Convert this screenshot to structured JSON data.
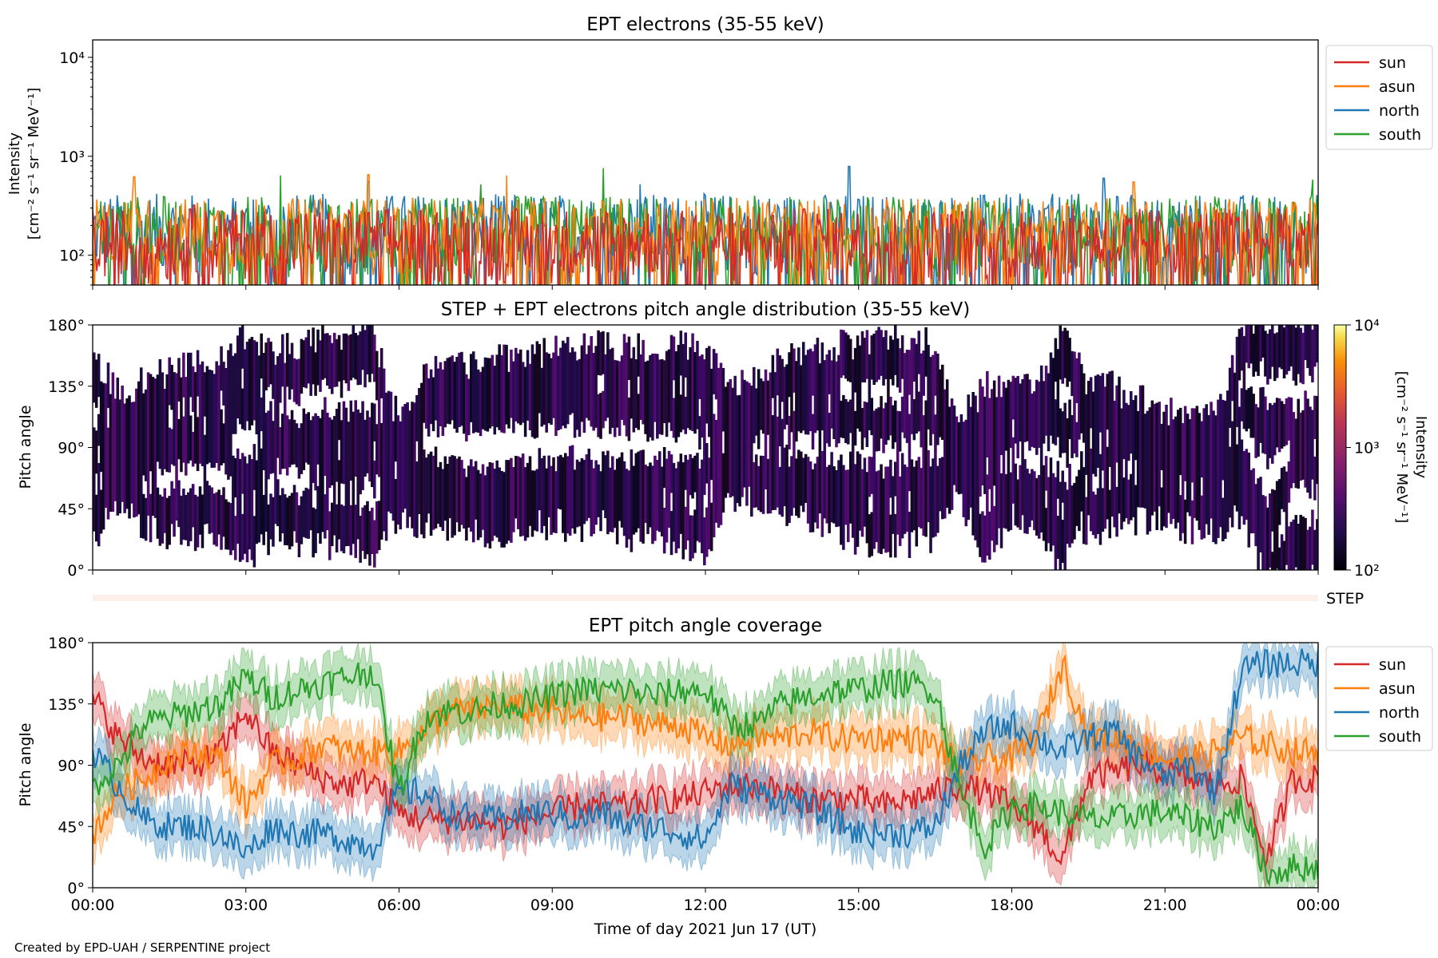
{
  "footer": {
    "credit": "Created by EPD-UAH / SERPENTINE project"
  },
  "colors": {
    "sun": "#d62728",
    "asun": "#ff7f0e",
    "north": "#1f77b4",
    "south": "#2ca02c",
    "step_bar": "#fdf0ea"
  },
  "chart_data": [
    {
      "type": "line",
      "title": "EPT electrons (35-55 keV)",
      "ylabel": [
        "Intensity",
        "[cm⁻² s⁻¹ sr⁻¹ MeV⁻¹]"
      ],
      "yscale": "log",
      "ylim": [
        50,
        15000
      ],
      "yticks": [
        {
          "v": 100,
          "label": "10²"
        },
        {
          "v": 1000,
          "label": "10³"
        },
        {
          "v": 10000,
          "label": "10⁴"
        }
      ],
      "x_hours": [
        0,
        24
      ],
      "legend": {
        "position": "outside-right",
        "entries": [
          "sun",
          "asun",
          "north",
          "south"
        ]
      },
      "series": [
        {
          "name": "north",
          "color": "#1f77b4",
          "typical": [
            60,
            420
          ],
          "peaks": [
            [
              5.4,
              560
            ],
            [
              14.8,
              790
            ],
            [
              19.8,
              600
            ],
            [
              10.7,
              520
            ]
          ]
        },
        {
          "name": "south",
          "color": "#2ca02c",
          "typical": [
            60,
            400
          ],
          "peaks": [
            [
              10.0,
              760
            ],
            [
              3.7,
              640
            ],
            [
              23.9,
              580
            ],
            [
              7.6,
              520
            ]
          ]
        },
        {
          "name": "asun",
          "color": "#ff7f0e",
          "typical": [
            60,
            380
          ],
          "peaks": [
            [
              0.8,
              620
            ],
            [
              5.4,
              650
            ],
            [
              8.1,
              640
            ],
            [
              20.4,
              550
            ]
          ]
        },
        {
          "name": "sun",
          "color": "#d62728",
          "typical": [
            50,
            300
          ],
          "peaks": [
            [
              2.0,
              320
            ],
            [
              12.5,
              310
            ]
          ]
        }
      ]
    },
    {
      "type": "heatmap",
      "title": "STEP + EPT electrons pitch angle distribution (35-55 keV)",
      "ylabel": "Pitch angle",
      "ylim": [
        0,
        180
      ],
      "yticks": [
        "0°",
        "45°",
        "90°",
        "135°",
        "180°"
      ],
      "colorbar": {
        "label": [
          "Intensity",
          "[cm⁻² s⁻¹ sr⁻¹ MeV⁻¹]"
        ],
        "scale": "log",
        "range": [
          100,
          10000
        ],
        "ticks": [
          "10²",
          "10³",
          "10⁴"
        ],
        "colormap": "inferno"
      },
      "x_hours": [
        0,
        24
      ]
    },
    {
      "type": "bar",
      "label": "STEP",
      "x_hours": [
        0,
        24
      ]
    },
    {
      "type": "area",
      "title": "EPT pitch angle coverage",
      "ylabel": "Pitch angle",
      "xlabel": "Time of day 2021 Jun 17 (UT)",
      "ylim": [
        0,
        180
      ],
      "yticks": [
        "0°",
        "45°",
        "90°",
        "135°",
        "180°"
      ],
      "xticks": [
        "00:00",
        "03:00",
        "06:00",
        "09:00",
        "12:00",
        "15:00",
        "18:00",
        "21:00",
        "00:00"
      ],
      "x": [
        0,
        0.5,
        1,
        1.5,
        2,
        2.5,
        3,
        3.5,
        4,
        4.5,
        5,
        5.5,
        6,
        6.5,
        7,
        7.5,
        8,
        8.5,
        9,
        9.5,
        10,
        10.5,
        11,
        11.5,
        12,
        12.5,
        13,
        13.5,
        14,
        14.5,
        15,
        15.5,
        16,
        16.5,
        17,
        17.5,
        18,
        18.5,
        19,
        19.5,
        20,
        20.5,
        21,
        21.5,
        22,
        22.5,
        23,
        23.5,
        24
      ],
      "legend": {
        "position": "outside-right",
        "entries": [
          "sun",
          "asun",
          "north",
          "south"
        ]
      },
      "series": [
        {
          "name": "sun",
          "color": "#d62728",
          "values": [
            140,
            110,
            95,
            90,
            90,
            100,
            130,
            100,
            90,
            80,
            75,
            80,
            55,
            50,
            50,
            50,
            45,
            50,
            55,
            60,
            60,
            60,
            65,
            65,
            70,
            75,
            75,
            70,
            65,
            65,
            65,
            60,
            65,
            70,
            75,
            70,
            60,
            45,
            20,
            80,
            85,
            90,
            85,
            80,
            75,
            80,
            20,
            80,
            80
          ]
        },
        {
          "name": "asun",
          "color": "#ff7f0e",
          "values": [
            40,
            70,
            80,
            95,
            100,
            95,
            60,
            90,
            95,
            105,
            100,
            100,
            100,
            115,
            130,
            130,
            135,
            130,
            130,
            125,
            125,
            125,
            120,
            120,
            110,
            105,
            110,
            110,
            115,
            110,
            110,
            110,
            110,
            105,
            90,
            95,
            95,
            110,
            165,
            110,
            110,
            105,
            95,
            95,
            100,
            110,
            105,
            100,
            100
          ]
        },
        {
          "name": "north",
          "color": "#1f77b4",
          "values": [
            100,
            75,
            50,
            45,
            45,
            40,
            25,
            45,
            40,
            40,
            35,
            30,
            70,
            70,
            55,
            50,
            50,
            55,
            55,
            50,
            55,
            45,
            45,
            40,
            35,
            75,
            70,
            65,
            60,
            50,
            40,
            40,
            40,
            45,
            90,
            115,
            120,
            110,
            100,
            110,
            115,
            95,
            80,
            90,
            70,
            160,
            165,
            165,
            165
          ]
        },
        {
          "name": "south",
          "color": "#2ca02c",
          "values": [
            75,
            90,
            120,
            125,
            130,
            135,
            155,
            140,
            145,
            150,
            155,
            160,
            70,
            125,
            130,
            130,
            135,
            135,
            140,
            145,
            145,
            145,
            140,
            145,
            145,
            120,
            120,
            135,
            140,
            145,
            145,
            150,
            150,
            145,
            70,
            30,
            60,
            60,
            55,
            50,
            50,
            55,
            55,
            50,
            45,
            60,
            10,
            15,
            15
          ]
        }
      ]
    }
  ]
}
